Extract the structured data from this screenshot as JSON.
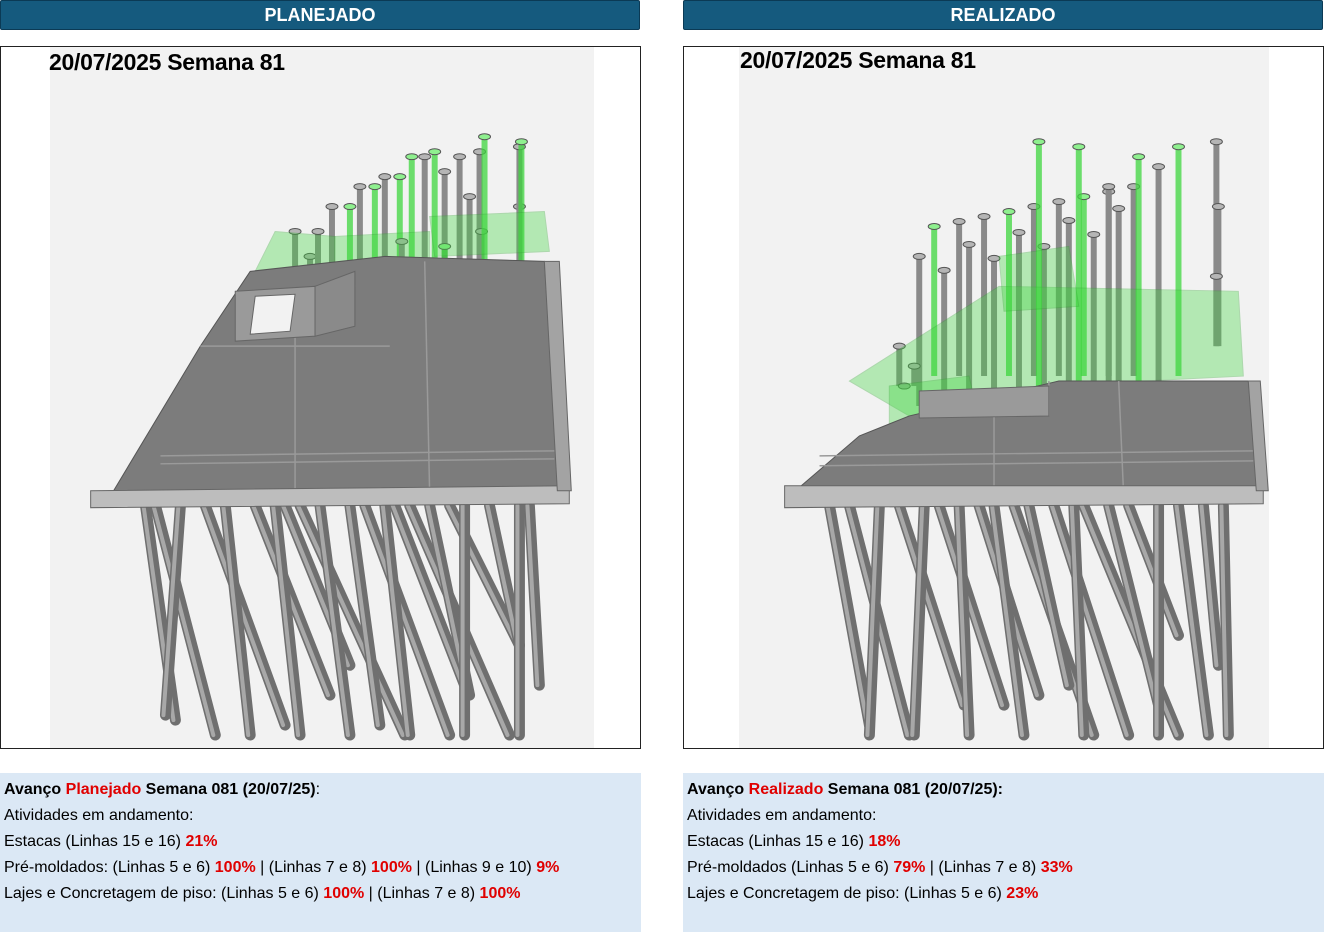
{
  "planned": {
    "header": "PLANEJADO",
    "date_label": "20/07/2025 Semana 81",
    "title": {
      "prefix": "Avanço ",
      "highlight": "Planejado",
      "suffix": " Semana 081 (20/07/25)",
      "colon": ":"
    },
    "activities_label": "Atividades em andamento:",
    "estacas": {
      "text": "Estacas (Linhas 15 e 16) ",
      "value": "21%"
    },
    "premoldados": {
      "text1": "Pré-moldados: (Linhas 5 e 6) ",
      "value1": "100%",
      "text2": " | (Linhas 7 e 8) ",
      "value2": "100%",
      "text3": " | (Linhas 9 e 10) ",
      "value3": "9%"
    },
    "lajes": {
      "text1": "Lajes e Concretagem de piso: (Linhas 5 e 6) ",
      "value1": "100%",
      "text2": " | (Linhas 7 e 8) ",
      "value2": "100%"
    }
  },
  "actual": {
    "header": "REALIZADO",
    "date_label": "20/07/2025 Semana 81",
    "title": {
      "prefix": "Avanço ",
      "highlight": "Realizado",
      "suffix": " Semana 081 (20/07/25):"
    },
    "activities_label": "Atividades em andamento:",
    "estacas": {
      "text": "Estacas (Linhas 15 e 16) ",
      "value": "18%"
    },
    "premoldados": {
      "text1": "Pré-moldados (Linhas 5 e 6) ",
      "value1": "79%",
      "text2": " | (Linhas 7 e 8) ",
      "value2": "33%"
    },
    "lajes": {
      "text1": "Lajes e Concretagem de piso: (Linhas 5 e 6) ",
      "value1": "23%"
    }
  },
  "colors": {
    "header_bg": "#155a7e",
    "info_bg": "#dbe8f5",
    "highlight_red": "#e00000",
    "pile_gray": "#8a8a8a",
    "slab_gray": "#7c7c7c",
    "pile_green": "#3fd63f"
  }
}
